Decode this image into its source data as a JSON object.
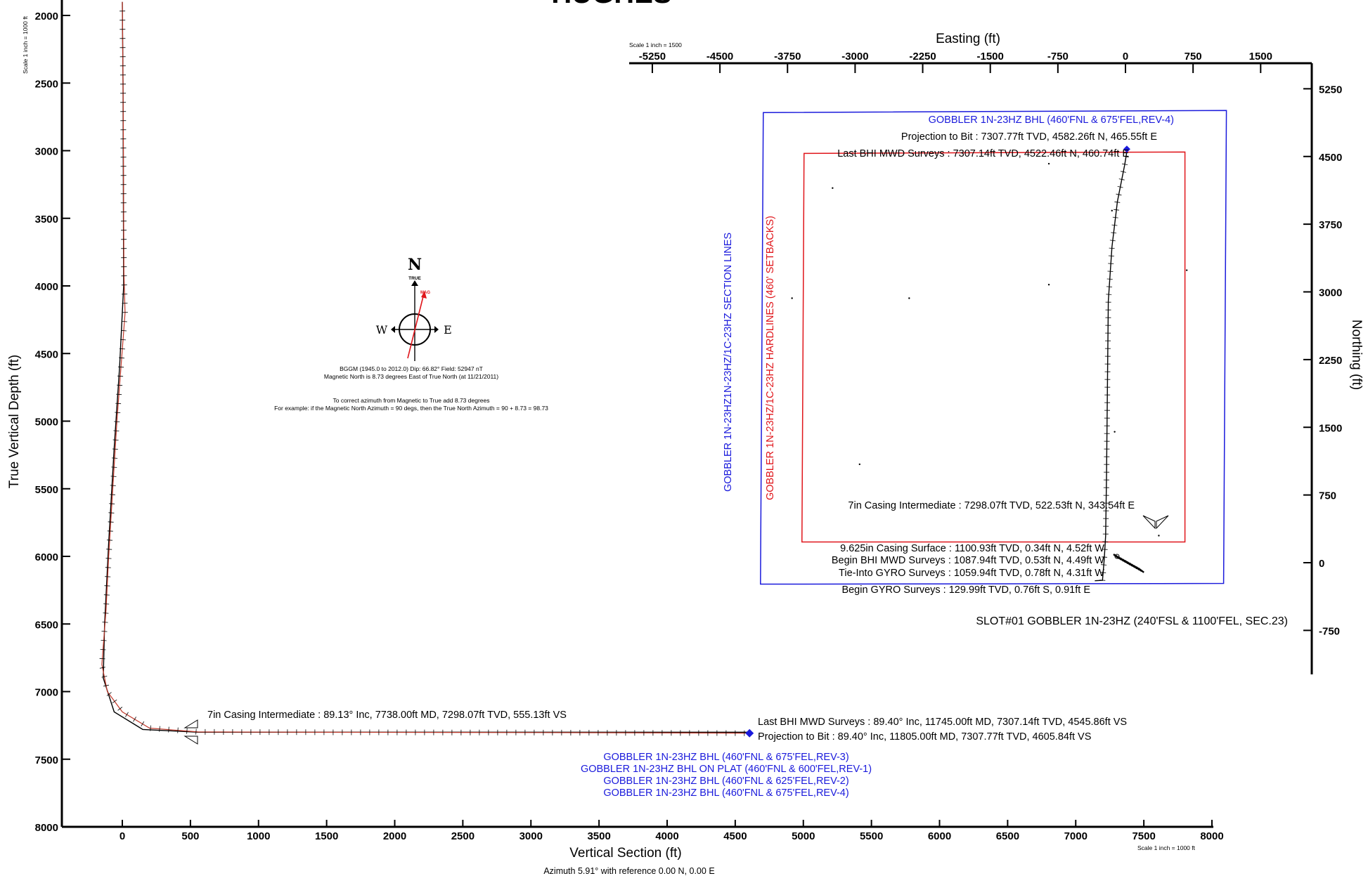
{
  "header": {
    "company_fragment": "HUGHES"
  },
  "chart_data": [
    {
      "type": "line",
      "name": "vertical-section",
      "xlabel": "Vertical Section (ft)",
      "ylabel": "True Vertical Depth (ft)",
      "subtitle": "Azimuth 5.91° with reference 0.00 N, 0.00 E",
      "scale_top": "Scale 1 inch = 1000 ft",
      "scale_bottom": "Scale 1 inch = 1000 ft",
      "xlim": [
        -430,
        8000
      ],
      "ylim": [
        2000,
        8000
      ],
      "y_inverted": true,
      "x_ticks": [
        0,
        500,
        1000,
        1500,
        2000,
        2500,
        3000,
        3500,
        4000,
        4500,
        5000,
        5500,
        6000,
        6500,
        7000,
        7500,
        8000
      ],
      "y_ticks": [
        2000,
        2500,
        3000,
        3500,
        4000,
        4500,
        5000,
        5500,
        6000,
        6500,
        7000,
        7500,
        8000
      ],
      "well_path": [
        [
          0,
          1900
        ],
        [
          5,
          2500
        ],
        [
          8,
          3000
        ],
        [
          10,
          3500
        ],
        [
          12,
          3900
        ],
        [
          20,
          4200
        ],
        [
          -10,
          4600
        ],
        [
          -40,
          5000
        ],
        [
          -70,
          5500
        ],
        [
          -100,
          6000
        ],
        [
          -120,
          6400
        ],
        [
          -150,
          6800
        ],
        [
          -110,
          7000
        ],
        [
          0,
          7150
        ],
        [
          200,
          7270
        ],
        [
          555,
          7298
        ],
        [
          1500,
          7301
        ],
        [
          3000,
          7303
        ],
        [
          4545,
          7307
        ],
        [
          4605,
          7308
        ]
      ],
      "plan_path": [
        [
          0,
          1900
        ],
        [
          5,
          2500
        ],
        [
          8,
          3500
        ],
        [
          10,
          4000
        ],
        [
          -20,
          4600
        ],
        [
          -60,
          5200
        ],
        [
          -100,
          5900
        ],
        [
          -130,
          6500
        ],
        [
          -140,
          6900
        ],
        [
          -60,
          7150
        ],
        [
          150,
          7280
        ],
        [
          555,
          7300
        ],
        [
          4605,
          7300
        ]
      ],
      "annotations": {
        "casing": "7in Casing Intermediate : 89.13° Inc, 7738.00ft MD, 7298.07ft TVD, 555.13ft VS",
        "last_bhi": "Last BHI MWD Surveys : 89.40° Inc, 11745.00ft MD, 7307.14ft TVD, 4545.86ft VS",
        "projection": "Projection to Bit : 89.40° Inc, 11805.00ft MD, 7307.77ft TVD, 4605.84ft VS"
      },
      "targets": [
        "GOBBLER 1N-23HZ BHL (460'FNL & 675'FEL,REV-3)",
        "GOBBLER 1N-23HZ BHL ON PLAT (460'FNL & 600'FEL,REV-1)",
        "GOBBLER 1N-23HZ BHL (460'FNL & 625'FEL,REV-2)",
        "GOBBLER 1N-23HZ BHL (460'FNL & 675'FEL,REV-4)"
      ]
    },
    {
      "type": "line",
      "name": "plan-view",
      "xlabel": "Easting (ft)",
      "ylabel": "Northing (ft)",
      "scale": "Scale 1 inch = 1500",
      "xlim": [
        -5250,
        2250
      ],
      "ylim": [
        -1250,
        5750
      ],
      "x_ticks": [
        -5250,
        -4500,
        -3750,
        -3000,
        -2250,
        -1500,
        -750,
        0,
        750,
        1500
      ],
      "y_ticks": [
        5250,
        4500,
        3750,
        3000,
        2250,
        1500,
        750,
        0,
        -750
      ],
      "section_lines": {
        "label": "GOBBLER 1N-23HZ1N-23HZ/1C-23HZ SECTION LINES",
        "color": "#1a1adc",
        "x": [
          -4050,
          1120
        ],
        "y": [
          -230,
          5010
        ]
      },
      "hardlines": {
        "label": "GOBBLER 1N-23HZ/1C-23HZ HARDLINES (460' SETBACKS)",
        "color": "#e0161b",
        "x": [
          -3590,
          660
        ],
        "y": [
          230,
          4550
        ]
      },
      "well_path": [
        [
          -340,
          -200
        ],
        [
          -255,
          -195
        ],
        [
          -235,
          50
        ],
        [
          -220,
          300
        ],
        [
          -210,
          1000
        ],
        [
          -200,
          2000
        ],
        [
          -190,
          2900
        ],
        [
          -150,
          3500
        ],
        [
          -90,
          4000
        ],
        [
          -10,
          4400
        ],
        [
          10,
          4522
        ],
        [
          15,
          4582
        ]
      ],
      "scatter_points": [
        [
          -3250,
          4150
        ],
        [
          -850,
          4420
        ],
        [
          -150,
          3900
        ],
        [
          -850,
          3080
        ],
        [
          -2400,
          2930
        ],
        [
          -3700,
          2930
        ],
        [
          680,
          3240
        ],
        [
          -120,
          1450
        ],
        [
          -2950,
          1090
        ],
        [
          370,
          300
        ]
      ],
      "annotations": {
        "bhl": "GOBBLER 1N-23HZ BHL (460'FNL & 675'FEL,REV-4)",
        "projection": "Projection to Bit : 7307.77ft TVD, 4582.26ft N, 465.55ft E",
        "last_bhi": "Last BHI MWD Surveys : 7307.14ft TVD, 4522.46ft N, 460.74ft E",
        "casing_int": "7in Casing Intermediate : 7298.07ft TVD, 522.53ft N, 343.54ft E",
        "casing_surf": "9.625in Casing Surface : 1100.93ft TVD, 0.34ft N, 4.52ft W",
        "begin_bhi": "Begin BHI MWD Surveys : 1087.94ft TVD, 0.53ft N, 4.49ft W",
        "tie_in": "Tie-Into GYRO Surveys : 1059.94ft TVD, 0.78ft N, 4.31ft W",
        "begin_gyro": "Begin GYRO Surveys : 129.99ft TVD, 0.76ft S, 0.91ft E",
        "slot": "SLOT#01 GOBBLER 1N-23HZ (240'FSL & 1100'FEL, SEC.23)"
      }
    }
  ],
  "compass": {
    "north": "N",
    "true_label": "TRUE",
    "mag_label": "MAG",
    "west": "W",
    "east": "E",
    "mag_color": "#e0161b",
    "info1": "BGGM (1945.0 to 2012.0) Dip: 66.82°  Field: 52947 nT",
    "info2": "Magnetic North is 8.73 degrees East of True North (at 11/21/2011)",
    "info3": "To correct azimuth from Magnetic to True add 8.73 degrees",
    "info4": "For example: if the Magnetic North Azimuth = 90 degs, then the True North Azimuth = 90 + 8.73 = 98.73"
  }
}
